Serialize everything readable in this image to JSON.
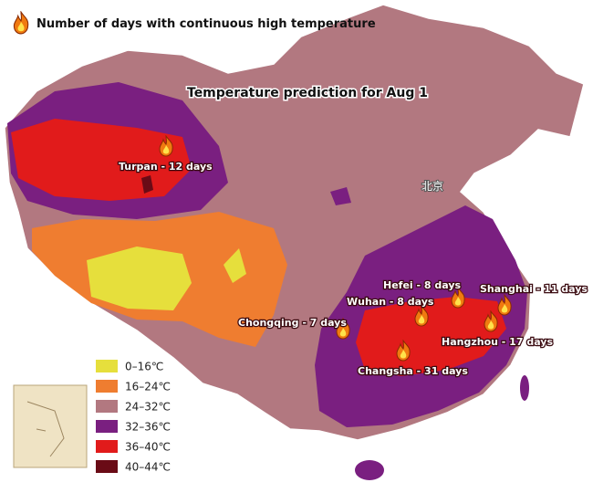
{
  "legend_title": "Number of days with continuous high temperature",
  "title": "Temperature prediction for Aug 1",
  "capital": "北京",
  "cities": [
    "Turpan - 12 days",
    "Hefei - 8 days",
    "Shanghai - 11 days",
    "Wuhan - 8 days",
    "Chongqing - 7 days",
    "Hangzhou - 17 days",
    "Changsha - 31 days"
  ],
  "temperature_legend": [
    {
      "label": "0–16℃",
      "color": "#e6df3c"
    },
    {
      "label": "16–24℃",
      "color": "#ef7d30"
    },
    {
      "label": "24–32℃",
      "color": "#b27880"
    },
    {
      "label": "32–36℃",
      "color": "#7a1f80"
    },
    {
      "label": "36–40℃",
      "color": "#e11b1b"
    },
    {
      "label": "40–44℃",
      "color": "#6a0b16"
    }
  ]
}
